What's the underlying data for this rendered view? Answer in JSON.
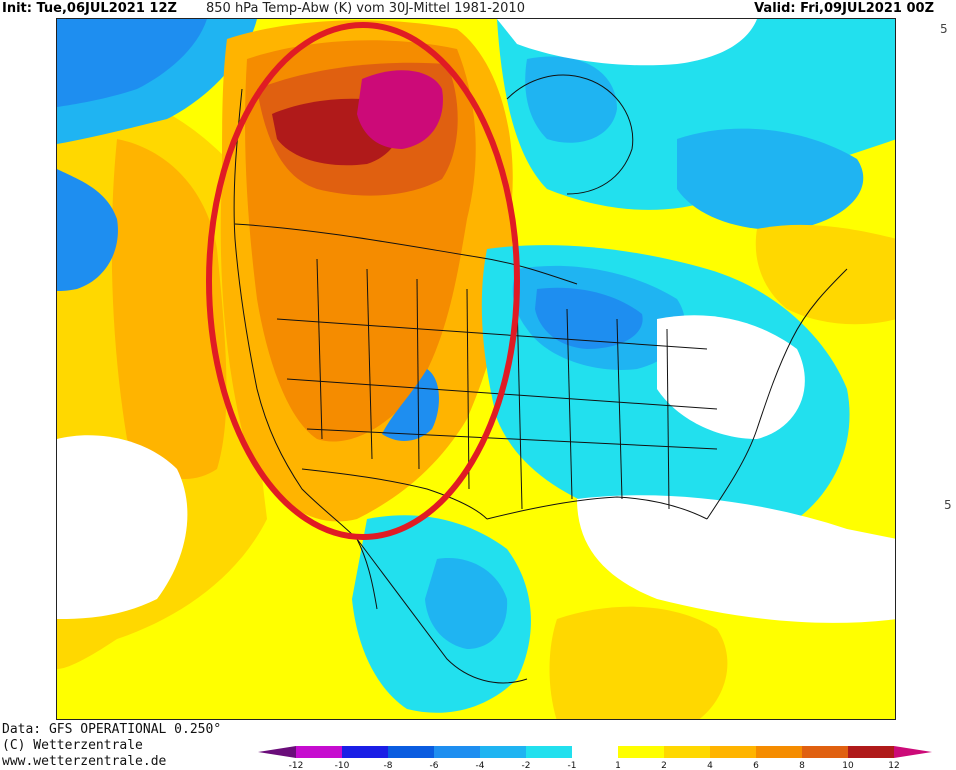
{
  "header": {
    "init": "Init: Tue,06JUL2021 12Z",
    "title": "850 hPa Temp-Abw (K) vom 30J-Mittel 1981-2010",
    "valid": "Valid: Fri,09JUL2021 00Z"
  },
  "footer": {
    "data_line": "Data: GFS OPERATIONAL 0.250°",
    "copyright": "(C) Wetterzentrale",
    "website": "www.wetterzentrale.de"
  },
  "legend": {
    "ticks": [
      "-12",
      "-10",
      "-8",
      "-6",
      "-4",
      "-2",
      "-1",
      "1",
      "2",
      "4",
      "6",
      "8",
      "10",
      "12"
    ],
    "colors": {
      "lt_m12": "#6a0d7a",
      "m12_m10": "#c60ccf",
      "m10_m8": "#1a1ee6",
      "m8_m6": "#0a5ce0",
      "m6_m4": "#1e8ef0",
      "m4_m2": "#1fb4f2",
      "m2_m1": "#22e0ee",
      "m1_p1": "#ffffff",
      "p1_p2": "#ffff00",
      "p2_p4": "#ffd800",
      "p4_p6": "#ffb400",
      "p6_p8": "#f58c00",
      "p8_p10": "#e06010",
      "p10_p12": "#b01a1a",
      "gt_p12": "#cc0a78"
    }
  },
  "annotation": {
    "color": "#e01b24"
  }
}
